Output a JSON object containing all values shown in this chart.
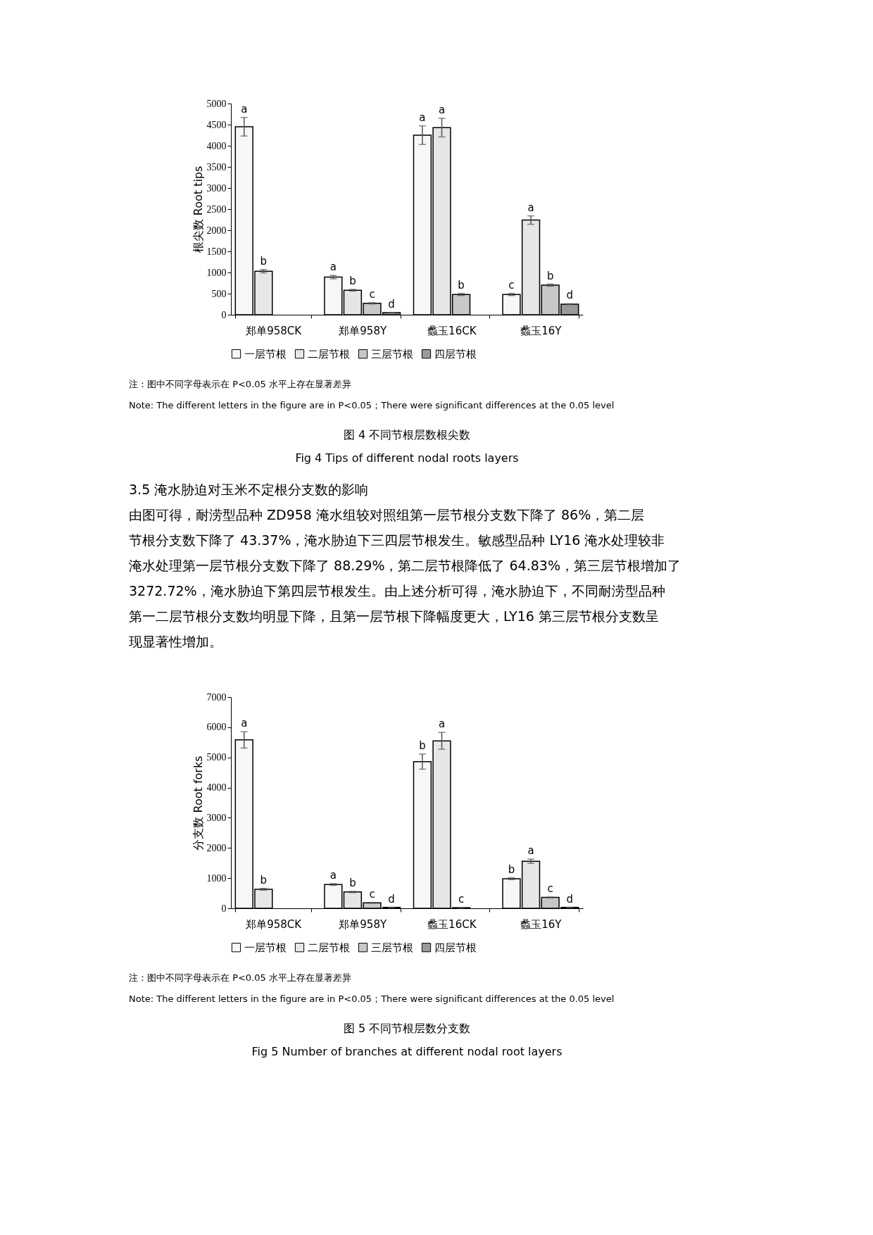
{
  "chart_data": [
    {
      "type": "bar",
      "ylabel": "根尖数 Root tips",
      "categories": [
        "郑单958CK",
        "郑单958Y",
        "蠡玉16CK",
        "蠡玉16Y"
      ],
      "ylim": [
        0,
        5000
      ],
      "yticks": [
        0,
        500,
        1000,
        1500,
        2000,
        2500,
        3000,
        3500,
        4000,
        4500,
        5000
      ],
      "grid": false,
      "legend": "bottom",
      "series": [
        {
          "name": "一层节根",
          "color": "#f7f7f7",
          "values": [
            4450,
            890,
            4250,
            480
          ],
          "errors": [
            220,
            40,
            220,
            25
          ],
          "value_labels": [
            "a",
            "a",
            "a",
            "c"
          ]
        },
        {
          "name": "二层节根",
          "color": "#e6e6e6",
          "values": [
            1030,
            580,
            4430,
            2240
          ],
          "errors": [
            40,
            20,
            220,
            100
          ],
          "value_labels": [
            "b",
            "b",
            "a",
            "a"
          ]
        },
        {
          "name": "三层节根",
          "color": "#c8c8c8",
          "values": [
            null,
            270,
            480,
            700
          ],
          "errors": [
            null,
            15,
            25,
            25
          ],
          "value_labels": [
            null,
            "c",
            "b",
            "b"
          ]
        },
        {
          "name": "四层节根",
          "color": "#9a9a9a",
          "values": [
            null,
            50,
            null,
            250
          ],
          "errors": [
            null,
            5,
            null,
            10
          ],
          "value_labels": [
            null,
            "d",
            null,
            "d"
          ]
        }
      ],
      "annotations": [
        "注：图中不同字母表示在 P<0.05 水平上存在显著差异",
        "Note: The different letters in the figure are in P<0.05；There were significant differences at the 0.05 level",
        "图 4 不同节根层数根尖数",
        "Fig 4 Tips of different nodal roots layers",
        "3.5  淹水胁迫对玉米不定根分支数的影响",
        "由图可得，耐涝型品种 ZD958 淹水组较对照组第一层节根分支数下降了 86%，第二层",
        "节根分支数下降了 43.37%，淹水胁迫下三四层节根发生。敏感型品种 LY16 淹水处理较非",
        "淹水处理第一层节根分支数下降了 88.29%，第二层节根降低了 64.83%，第三层节根增加了",
        "3272.72%，淹水胁迫下第四层节根发生。由上述分析可得，淹水胁迫下，不同耐涝型品种",
        "第一二层节根分支数均明显下降，且第一层节根下降幅度更大，LY16 第三层节根分支数呈",
        "现显著性增加。"
      ]
    },
    {
      "type": "bar",
      "ylabel": "分支数 Root forks",
      "categories": [
        "郑单958CK",
        "郑单958Y",
        "蠡玉16CK",
        "蠡玉16Y"
      ],
      "ylim": [
        0,
        7000
      ],
      "yticks": [
        0,
        1000,
        2000,
        3000,
        4000,
        5000,
        6000,
        7000
      ],
      "grid": false,
      "legend": "bottom",
      "series": [
        {
          "name": "一层节根",
          "color": "#f7f7f7",
          "values": [
            5580,
            790,
            4860,
            980
          ],
          "errors": [
            270,
            30,
            250,
            30
          ],
          "value_labels": [
            "a",
            "a",
            "b",
            "b"
          ]
        },
        {
          "name": "二层节根",
          "color": "#e6e6e6",
          "values": [
            630,
            540,
            5550,
            1560
          ],
          "errors": [
            30,
            20,
            280,
            70
          ],
          "value_labels": [
            "b",
            "b",
            "a",
            "a"
          ]
        },
        {
          "name": "三层节根",
          "color": "#c8c8c8",
          "values": [
            null,
            180,
            20,
            360
          ],
          "errors": [
            null,
            15,
            5,
            15
          ],
          "value_labels": [
            null,
            "c",
            "c",
            "c"
          ]
        },
        {
          "name": "四层节根",
          "color": "#9a9a9a",
          "values": [
            null,
            30,
            null,
            30
          ],
          "errors": [
            null,
            5,
            null,
            5
          ],
          "value_labels": [
            null,
            "d",
            null,
            "d"
          ]
        }
      ],
      "annotations": [
        "注：图中不同字母表示在 P<0.05 水平上存在显著差异",
        "Note: The different letters in the figure are in P<0.05；There were significant differences at the 0.05 level",
        "图 5  不同节根层数分支数",
        "Fig 5 Number of branches at different nodal root layers"
      ]
    }
  ]
}
